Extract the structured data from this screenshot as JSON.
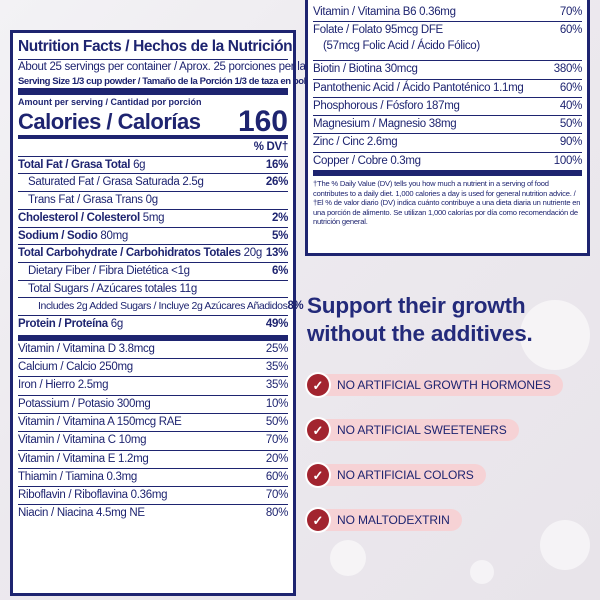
{
  "label": {
    "title": "Nutrition Facts / Hechos de la Nutrición",
    "servings": "About 25 servings per container / Aprox. 25 porciones per lata",
    "serving_size": "Serving Size 1/3 cup powder / Tamaño de la Porción 1/3 de taza en polvo (36g)",
    "amount_per_serving": "Amount per serving / Cantidad por porción",
    "calories_label": "Calories / Calorías",
    "calories_value": "160",
    "dv_header": "% DV†",
    "nutrients": [
      {
        "name": "Total Fat / Grasa Total",
        "amount": "6g",
        "dv": "16%"
      },
      {
        "name": "Saturated Fat / Grasa Saturada",
        "amount": "2.5g",
        "dv": "26%"
      },
      {
        "name": "Trans Fat / Grasa Trans",
        "amount": "0g",
        "dv": ""
      },
      {
        "name": "Cholesterol / Colesterol",
        "amount": "5mg",
        "dv": "2%"
      },
      {
        "name": "Sodium / Sodio",
        "amount": "80mg",
        "dv": "5%"
      },
      {
        "name": "Total Carbohydrate / Carbohidratos Totales",
        "amount": "20g",
        "dv": "13%"
      },
      {
        "name": "Dietary Fiber / Fibra Dietética",
        "amount": "<1g",
        "dv": "6%"
      },
      {
        "name": "Total Sugars / Azúcares totales",
        "amount": "11g",
        "dv": ""
      },
      {
        "name": "Includes 2g Added Sugars / Incluye 2g Azúcares Añadidos",
        "amount": "",
        "dv": "8%"
      },
      {
        "name": "Protein / Proteína",
        "amount": "6g",
        "dv": "49%"
      }
    ],
    "vitamins_left": [
      {
        "name": "Vitamin / Vitamina D 3.8mcg",
        "dv": "25%"
      },
      {
        "name": "Calcium / Calcio 250mg",
        "dv": "35%"
      },
      {
        "name": "Iron / Hierro 2.5mg",
        "dv": "35%"
      },
      {
        "name": "Potassium / Potasio 300mg",
        "dv": "10%"
      },
      {
        "name": "Vitamin / Vitamina A 150mcg RAE",
        "dv": "50%"
      },
      {
        "name": "Vitamin / Vitamina C 10mg",
        "dv": "70%"
      },
      {
        "name": "Vitamin / Vitamina E 1.2mg",
        "dv": "20%"
      },
      {
        "name": "Thiamin / Tiamina 0.3mg",
        "dv": "60%"
      },
      {
        "name": "Riboflavin / Riboflavina 0.36mg",
        "dv": "70%"
      },
      {
        "name": "Niacin / Niacina 4.5mg NE",
        "dv": "80%"
      }
    ],
    "vitamins_right": [
      {
        "name": "Vitamin / Vitamina B6 0.36mg",
        "dv": "70%"
      },
      {
        "name": "Folate / Folato 95mcg DFE",
        "name2": "(57mcg Folic Acid / Ácido Fólico)",
        "dv": "60%"
      },
      {
        "name": "Biotin / Biotina 30mcg",
        "dv": "380%"
      },
      {
        "name": "Pantothenic Acid / Ácido Pantoténico 1.1mg",
        "dv": "60%"
      },
      {
        "name": "Phosphorous / Fósforo 187mg",
        "dv": "40%"
      },
      {
        "name": "Magnesium / Magnesio 38mg",
        "dv": "50%"
      },
      {
        "name": "Zinc / Cinc 2.6mg",
        "dv": "90%"
      },
      {
        "name": "Copper / Cobre 0.3mg",
        "dv": "100%"
      }
    ],
    "footnote": "†The % Daily Value (DV) tells you how much a nutrient in a serving of food contributes to a daily diet. 1,000 calories a day is used for general nutrition advice. / †El % de valor diario (DV) indica cuánto contribuye a una dieta diaria un nutriente en una porción de alimento. Se utilizan 1,000 calorías por día como recomendación de nutrición general."
  },
  "marketing": {
    "headline_line1": "Support their growth",
    "headline_line2": "without the additives.",
    "check_icon": "check-circle-icon",
    "accent_color": "#a2242f",
    "pill_color": "#f6d2d5",
    "text_color": "#1e2470",
    "claims": [
      "NO ARTIFICIAL GROWTH HORMONES",
      "NO ARTIFICIAL SWEETENERS",
      "NO ARTIFICIAL COLORS",
      "NO MALTODEXTRIN"
    ]
  }
}
